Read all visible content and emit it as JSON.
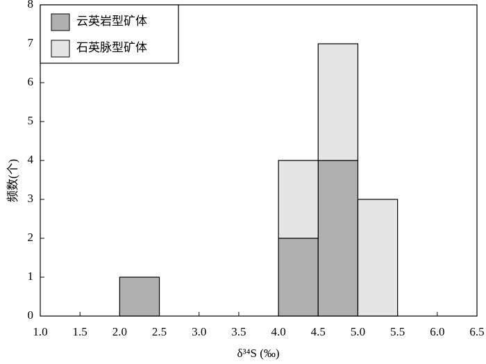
{
  "chart_data": {
    "type": "histogram",
    "x_label": "δ³⁴S (‰)",
    "y_label": "频数(个)",
    "bins": [
      1.0,
      1.5,
      2.0,
      2.5,
      3.0,
      3.5,
      4.0,
      4.5,
      5.0,
      5.5,
      6.0,
      6.5
    ],
    "series": [
      {
        "name": "云英岩型矿体",
        "color": "#b0b0b0",
        "values": [
          0,
          0,
          1,
          0,
          0,
          0,
          2,
          4,
          0,
          0,
          0
        ]
      },
      {
        "name": "石英脉型矿体",
        "color": "#e5e5e5",
        "values": [
          0,
          0,
          0,
          0,
          0,
          0,
          2,
          3,
          3,
          0,
          0
        ]
      }
    ],
    "stacked": true,
    "xlim": [
      1.0,
      6.5
    ],
    "xticks": [
      {
        "value": 1,
        "label": "1.0"
      },
      1.5,
      {
        "value": 2,
        "label": "2.0"
      },
      2.5,
      {
        "value": 3,
        "label": "3.0"
      },
      3.5,
      {
        "value": 4,
        "label": "4.0"
      },
      4.5,
      {
        "value": 5,
        "label": "5.0"
      },
      5.5,
      {
        "value": 6,
        "label": "6.0"
      },
      6.5
    ],
    "ylim": [
      0,
      8
    ],
    "yticks": [
      0,
      1,
      2,
      3,
      4,
      5,
      6,
      7,
      8
    ],
    "legend": "top-left"
  }
}
